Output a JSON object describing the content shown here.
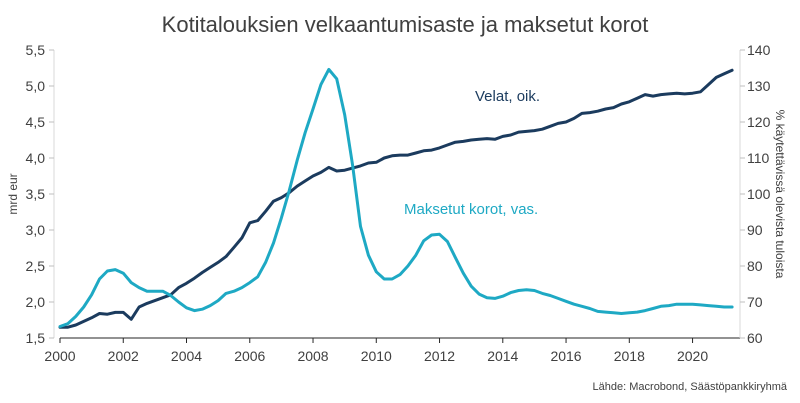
{
  "chart_data": {
    "type": "line",
    "title": "Kotitalouksien velkaantumisaste ja maksetut korot",
    "source": "Lähde: Macrobond, Säästöpankkiryhmä",
    "left_axis": {
      "label": "mrd eur",
      "range": [
        1.5,
        5.5
      ],
      "ticks": [
        "1,5",
        "2,0",
        "2,5",
        "3,0",
        "3,5",
        "4,0",
        "4,5",
        "5,0",
        "5,5"
      ]
    },
    "right_axis": {
      "label": "% käytettävissä olevista tuloista",
      "range": [
        60,
        140
      ],
      "ticks": [
        "60",
        "70",
        "80",
        "90",
        "100",
        "110",
        "120",
        "130",
        "140"
      ]
    },
    "x_axis": {
      "range": [
        2000,
        2021.5
      ],
      "ticks": [
        "2000",
        "2002",
        "2004",
        "2006",
        "2008",
        "2010",
        "2012",
        "2014",
        "2016",
        "2018",
        "2020"
      ]
    },
    "grid": false,
    "series": [
      {
        "name": "Velat, oik.",
        "axis": "right",
        "color": "#1b3b5e",
        "points": [
          [
            2000.0,
            63.0
          ],
          [
            2000.25,
            63.0
          ],
          [
            2000.5,
            63.6
          ],
          [
            2000.75,
            64.6
          ],
          [
            2001.0,
            65.6
          ],
          [
            2001.25,
            66.8
          ],
          [
            2001.5,
            66.6
          ],
          [
            2001.75,
            67.1
          ],
          [
            2002.0,
            67.1
          ],
          [
            2002.25,
            65.2
          ],
          [
            2002.5,
            68.6
          ],
          [
            2002.75,
            69.6
          ],
          [
            2003.0,
            70.4
          ],
          [
            2003.25,
            71.2
          ],
          [
            2003.5,
            72.0
          ],
          [
            2003.75,
            74.0
          ],
          [
            2004.0,
            75.2
          ],
          [
            2004.25,
            76.6
          ],
          [
            2004.5,
            78.2
          ],
          [
            2004.75,
            79.6
          ],
          [
            2005.0,
            81.0
          ],
          [
            2005.25,
            82.6
          ],
          [
            2005.5,
            85.2
          ],
          [
            2005.75,
            87.8
          ],
          [
            2006.0,
            92.0
          ],
          [
            2006.25,
            92.6
          ],
          [
            2006.5,
            95.2
          ],
          [
            2006.75,
            98.0
          ],
          [
            2007.0,
            99.0
          ],
          [
            2007.25,
            100.4
          ],
          [
            2007.5,
            102.2
          ],
          [
            2007.75,
            103.6
          ],
          [
            2008.0,
            105.0
          ],
          [
            2008.25,
            106.0
          ],
          [
            2008.5,
            107.4
          ],
          [
            2008.75,
            106.4
          ],
          [
            2009.0,
            106.6
          ],
          [
            2009.25,
            107.2
          ],
          [
            2009.5,
            107.8
          ],
          [
            2009.75,
            108.6
          ],
          [
            2010.0,
            108.8
          ],
          [
            2010.25,
            110.0
          ],
          [
            2010.5,
            110.6
          ],
          [
            2010.75,
            110.8
          ],
          [
            2011.0,
            110.8
          ],
          [
            2011.25,
            111.4
          ],
          [
            2011.5,
            112.0
          ],
          [
            2011.75,
            112.2
          ],
          [
            2012.0,
            112.8
          ],
          [
            2012.25,
            113.6
          ],
          [
            2012.5,
            114.4
          ],
          [
            2012.75,
            114.6
          ],
          [
            2013.0,
            115.0
          ],
          [
            2013.25,
            115.2
          ],
          [
            2013.5,
            115.4
          ],
          [
            2013.75,
            115.2
          ],
          [
            2014.0,
            116.0
          ],
          [
            2014.25,
            116.4
          ],
          [
            2014.5,
            117.2
          ],
          [
            2014.75,
            117.4
          ],
          [
            2015.0,
            117.6
          ],
          [
            2015.25,
            118.0
          ],
          [
            2015.5,
            118.8
          ],
          [
            2015.75,
            119.6
          ],
          [
            2016.0,
            120.0
          ],
          [
            2016.25,
            121.0
          ],
          [
            2016.5,
            122.4
          ],
          [
            2016.75,
            122.6
          ],
          [
            2017.0,
            123.0
          ],
          [
            2017.25,
            123.6
          ],
          [
            2017.5,
            124.0
          ],
          [
            2017.75,
            125.0
          ],
          [
            2018.0,
            125.6
          ],
          [
            2018.25,
            126.6
          ],
          [
            2018.5,
            127.6
          ],
          [
            2018.75,
            127.2
          ],
          [
            2019.0,
            127.6
          ],
          [
            2019.25,
            127.8
          ],
          [
            2019.5,
            128.0
          ],
          [
            2019.75,
            127.8
          ],
          [
            2020.0,
            128.0
          ],
          [
            2020.25,
            128.4
          ],
          [
            2020.5,
            130.4
          ],
          [
            2020.75,
            132.4
          ],
          [
            2021.0,
            133.4
          ],
          [
            2021.25,
            134.4
          ]
        ]
      },
      {
        "name": "Maksetut korot, vas.",
        "axis": "left",
        "color": "#1ea9c4",
        "points": [
          [
            2000.0,
            1.66
          ],
          [
            2000.25,
            1.7
          ],
          [
            2000.5,
            1.8
          ],
          [
            2000.75,
            1.93
          ],
          [
            2001.0,
            2.1
          ],
          [
            2001.25,
            2.32
          ],
          [
            2001.5,
            2.43
          ],
          [
            2001.75,
            2.45
          ],
          [
            2002.0,
            2.4
          ],
          [
            2002.25,
            2.27
          ],
          [
            2002.5,
            2.2
          ],
          [
            2002.75,
            2.15
          ],
          [
            2003.0,
            2.15
          ],
          [
            2003.25,
            2.15
          ],
          [
            2003.5,
            2.09
          ],
          [
            2003.75,
            2.0
          ],
          [
            2004.0,
            1.92
          ],
          [
            2004.25,
            1.88
          ],
          [
            2004.5,
            1.9
          ],
          [
            2004.75,
            1.95
          ],
          [
            2005.0,
            2.02
          ],
          [
            2005.25,
            2.12
          ],
          [
            2005.5,
            2.15
          ],
          [
            2005.75,
            2.2
          ],
          [
            2006.0,
            2.27
          ],
          [
            2006.25,
            2.35
          ],
          [
            2006.5,
            2.55
          ],
          [
            2006.75,
            2.82
          ],
          [
            2007.0,
            3.17
          ],
          [
            2007.25,
            3.55
          ],
          [
            2007.5,
            3.97
          ],
          [
            2007.75,
            4.35
          ],
          [
            2008.0,
            4.68
          ],
          [
            2008.25,
            5.02
          ],
          [
            2008.5,
            5.23
          ],
          [
            2008.75,
            5.1
          ],
          [
            2009.0,
            4.6
          ],
          [
            2009.25,
            3.9
          ],
          [
            2009.5,
            3.05
          ],
          [
            2009.75,
            2.65
          ],
          [
            2010.0,
            2.42
          ],
          [
            2010.25,
            2.32
          ],
          [
            2010.5,
            2.32
          ],
          [
            2010.75,
            2.38
          ],
          [
            2011.0,
            2.5
          ],
          [
            2011.25,
            2.65
          ],
          [
            2011.5,
            2.85
          ],
          [
            2011.75,
            2.93
          ],
          [
            2012.0,
            2.94
          ],
          [
            2012.25,
            2.84
          ],
          [
            2012.5,
            2.62
          ],
          [
            2012.75,
            2.4
          ],
          [
            2013.0,
            2.22
          ],
          [
            2013.25,
            2.11
          ],
          [
            2013.5,
            2.06
          ],
          [
            2013.75,
            2.05
          ],
          [
            2014.0,
            2.08
          ],
          [
            2014.25,
            2.13
          ],
          [
            2014.5,
            2.16
          ],
          [
            2014.75,
            2.17
          ],
          [
            2015.0,
            2.16
          ],
          [
            2015.25,
            2.12
          ],
          [
            2015.5,
            2.09
          ],
          [
            2015.75,
            2.05
          ],
          [
            2016.0,
            2.01
          ],
          [
            2016.25,
            1.97
          ],
          [
            2016.5,
            1.94
          ],
          [
            2016.75,
            1.91
          ],
          [
            2017.0,
            1.87
          ],
          [
            2017.25,
            1.86
          ],
          [
            2017.5,
            1.85
          ],
          [
            2017.75,
            1.84
          ],
          [
            2018.0,
            1.85
          ],
          [
            2018.25,
            1.86
          ],
          [
            2018.5,
            1.88
          ],
          [
            2018.75,
            1.91
          ],
          [
            2019.0,
            1.94
          ],
          [
            2019.25,
            1.95
          ],
          [
            2019.5,
            1.97
          ],
          [
            2019.75,
            1.97
          ],
          [
            2020.0,
            1.97
          ],
          [
            2020.25,
            1.96
          ],
          [
            2020.5,
            1.95
          ],
          [
            2020.75,
            1.94
          ],
          [
            2021.0,
            1.93
          ],
          [
            2021.25,
            1.93
          ]
        ]
      }
    ]
  }
}
